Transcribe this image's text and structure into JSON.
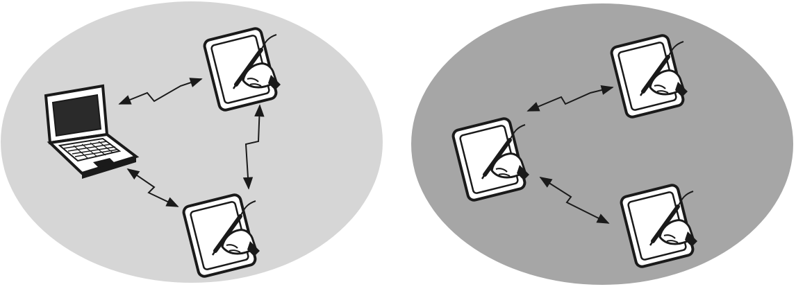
{
  "diagram": {
    "networks": [
      {
        "id": "laptop-network",
        "background_color": "#d6d6d6",
        "nodes": [
          {
            "kind": "laptop",
            "icon": "laptop-icon"
          },
          {
            "kind": "tablet",
            "icon": "pen-tablet-icon"
          },
          {
            "kind": "tablet",
            "icon": "pen-tablet-icon"
          }
        ],
        "links": [
          {
            "from": 0,
            "to": 1,
            "style": "wireless-bidirectional"
          },
          {
            "from": 1,
            "to": 2,
            "style": "wireless-bidirectional"
          },
          {
            "from": 0,
            "to": 2,
            "style": "wireless-bidirectional"
          }
        ]
      },
      {
        "id": "tablet-network",
        "background_color": "#a6a6a6",
        "nodes": [
          {
            "kind": "tablet",
            "icon": "pen-tablet-icon"
          },
          {
            "kind": "tablet",
            "icon": "pen-tablet-icon"
          },
          {
            "kind": "tablet",
            "icon": "pen-tablet-icon"
          }
        ],
        "links": [
          {
            "from": 0,
            "to": 1,
            "style": "wireless-bidirectional"
          },
          {
            "from": 0,
            "to": 2,
            "style": "wireless-bidirectional"
          }
        ]
      }
    ],
    "colors": {
      "stroke": "#1a1a1a",
      "device_fill": "#ffffff",
      "screen_dark": "#2a2a2a"
    }
  }
}
